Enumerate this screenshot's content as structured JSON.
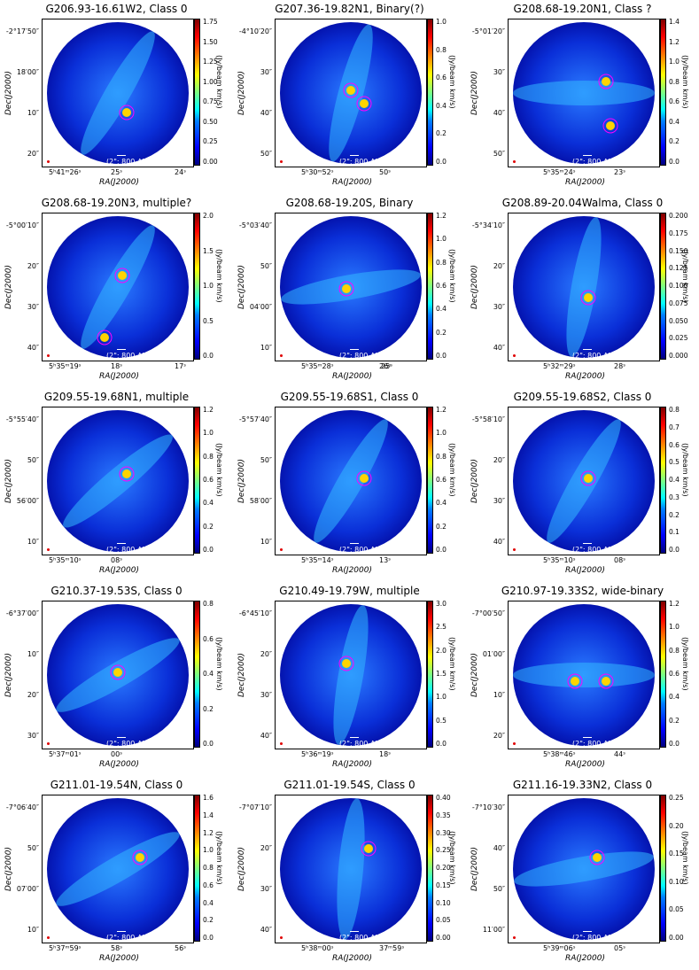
{
  "common": {
    "xlabel": "RA(J2000)",
    "ylabel": "Dec(J2000)",
    "cbar_label": "(Jy/beam km/s)",
    "scale_label": "(2\"; 800 AU)"
  },
  "panels": [
    {
      "title": "G206.93-16.61W2, Class 0",
      "yticks": [
        "-2°17′50″",
        "18′00″",
        "10″",
        "20″"
      ],
      "xticks": [
        "5ʰ41ᵐ26ˢ",
        "25ˢ",
        "24ˢ"
      ],
      "cticks": [
        "1.75",
        "1.50",
        "1.25",
        "1.00",
        "0.75",
        "0.50",
        "0.25",
        "0.00"
      ]
    },
    {
      "title": "G207.36-19.82N1, Binary(?)",
      "yticks": [
        "-4°10′20″",
        "30″",
        "40″",
        "50″"
      ],
      "xticks": [
        "5ʰ30ᵐ52ˢ",
        "50ˢ"
      ],
      "cticks": [
        "1.0",
        "0.8",
        "0.6",
        "0.4",
        "0.2",
        "0.0"
      ]
    },
    {
      "title": "G208.68-19.20N1, Class ?",
      "yticks": [
        "-5°01′20″",
        "30″",
        "40″",
        "50″"
      ],
      "xticks": [
        "5ʰ35ᵐ24ˢ",
        "23ˢ"
      ],
      "cticks": [
        "1.4",
        "1.2",
        "1.0",
        "0.8",
        "0.6",
        "0.4",
        "0.2",
        "0.0"
      ]
    },
    {
      "title": "G208.68-19.20N3, multiple?",
      "yticks": [
        "-5°00′10″",
        "20″",
        "30″",
        "40″"
      ],
      "xticks": [
        "5ʰ35ᵐ19ˢ",
        "18ˢ",
        "17ˢ"
      ],
      "cticks": [
        "2.0",
        "1.5",
        "1.0",
        "0.5",
        "0.0"
      ]
    },
    {
      "title": "G208.68-19.20S, Binary",
      "yticks": [
        "-5°03′40″",
        "50″",
        "04′00″",
        "10″"
      ],
      "xticks": [
        "5ʰ35ᵐ28ˢ",
        "26ˢ",
        "25ˢ"
      ],
      "cticks": [
        "1.2",
        "1.0",
        "0.8",
        "0.6",
        "0.4",
        "0.2",
        "0.0"
      ]
    },
    {
      "title": "G208.89-20.04Walma, Class 0",
      "yticks": [
        "-5°34′10″",
        "20″",
        "30″",
        "40″"
      ],
      "xticks": [
        "5ʰ32ᵐ29ˢ",
        "28ˢ"
      ],
      "cticks": [
        "0.200",
        "0.175",
        "0.150",
        "0.125",
        "0.100",
        "0.075",
        "0.050",
        "0.025",
        "0.000"
      ]
    },
    {
      "title": "G209.55-19.68N1, multiple",
      "yticks": [
        "-5°55′40″",
        "50″",
        "56′00″",
        "10″"
      ],
      "xticks": [
        "5ʰ35ᵐ10ˢ",
        "08ˢ"
      ],
      "cticks": [
        "1.2",
        "1.0",
        "0.8",
        "0.6",
        "0.4",
        "0.2",
        "0.0"
      ]
    },
    {
      "title": "G209.55-19.68S1, Class 0",
      "yticks": [
        "-5°57′40″",
        "50″",
        "58′00″",
        "10″"
      ],
      "xticks": [
        "5ʰ35ᵐ14ˢ",
        "13ˢ"
      ],
      "cticks": [
        "1.2",
        "1.0",
        "0.8",
        "0.6",
        "0.4",
        "0.2",
        "0.0"
      ]
    },
    {
      "title": "G209.55-19.68S2, Class 0",
      "yticks": [
        "-5°58′10″",
        "20″",
        "30″",
        "40″"
      ],
      "xticks": [
        "5ʰ35ᵐ10ˢ",
        "08ˢ"
      ],
      "cticks": [
        "0.8",
        "0.7",
        "0.6",
        "0.5",
        "0.4",
        "0.3",
        "0.2",
        "0.1",
        "0.0"
      ]
    },
    {
      "title": "G210.37-19.53S, Class 0",
      "yticks": [
        "-6°37′00″",
        "10″",
        "20″",
        "30″"
      ],
      "xticks": [
        "5ʰ37ᵐ01ˢ",
        "00ˢ"
      ],
      "cticks": [
        "0.8",
        "0.6",
        "0.4",
        "0.2",
        "0.0"
      ]
    },
    {
      "title": "G210.49-19.79W, multiple",
      "yticks": [
        "-6°45′10″",
        "20″",
        "30″",
        "40″"
      ],
      "xticks": [
        "5ʰ36ᵐ19ˢ",
        "18ˢ"
      ],
      "cticks": [
        "3.0",
        "2.5",
        "2.0",
        "1.5",
        "1.0",
        "0.5",
        "0.0"
      ]
    },
    {
      "title": "G210.97-19.33S2, wide-binary",
      "yticks": [
        "-7°00′50″",
        "01′00″",
        "10″",
        "20″"
      ],
      "xticks": [
        "5ʰ38ᵐ46ˢ",
        "44ˢ"
      ],
      "cticks": [
        "1.2",
        "1.0",
        "0.8",
        "0.6",
        "0.4",
        "0.2",
        "0.0"
      ]
    },
    {
      "title": "G211.01-19.54N, Class 0",
      "yticks": [
        "-7°06′40″",
        "50″",
        "07′00″",
        "10″"
      ],
      "xticks": [
        "5ʰ37ᵐ59ˢ",
        "58ˢ",
        "56ˢ"
      ],
      "cticks": [
        "1.6",
        "1.4",
        "1.2",
        "1.0",
        "0.8",
        "0.6",
        "0.4",
        "0.2",
        "0.0"
      ]
    },
    {
      "title": "G211.01-19.54S, Class 0",
      "yticks": [
        "-7°07′10″",
        "20″",
        "30″",
        "40″"
      ],
      "xticks": [
        "5ʰ38ᵐ00ˢ",
        "37ᵐ59ˢ"
      ],
      "cticks": [
        "0.40",
        "0.35",
        "0.30",
        "0.25",
        "0.20",
        "0.15",
        "0.10",
        "0.05",
        "0.00"
      ]
    },
    {
      "title": "G211.16-19.33N2, Class 0",
      "yticks": [
        "-7°10′30″",
        "40″",
        "50″",
        "11′00″"
      ],
      "xticks": [
        "5ʰ39ᵐ06ˢ",
        "05ˢ"
      ],
      "cticks": [
        "0.25",
        "0.20",
        "0.15",
        "0.10",
        "0.05",
        "0.00"
      ]
    }
  ]
}
